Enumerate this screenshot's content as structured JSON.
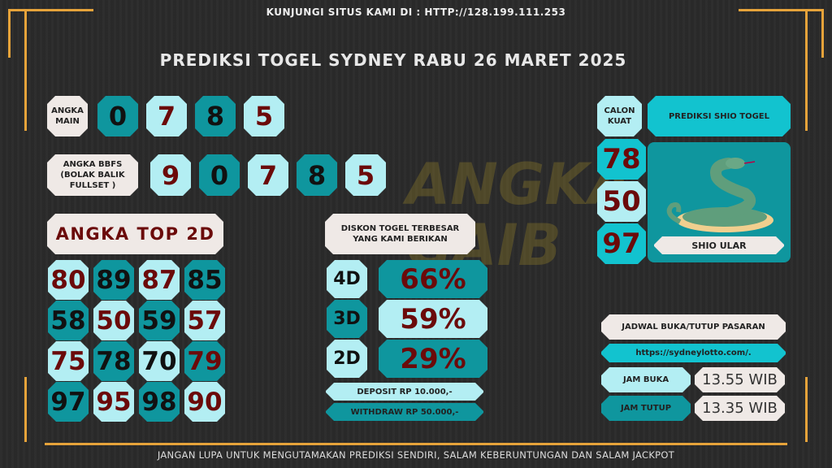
{
  "header": {
    "visit_text": "KUNJUNGI SITUS KAMI DI : HTTP://128.199.111.253",
    "title": "PREDIKSI TOGEL SYDNEY RABU 26 MARET 2025"
  },
  "watermark": "ANGKA GAIB",
  "angka_main": {
    "label": "ANGKA MAIN",
    "digits": [
      "0",
      "7",
      "8",
      "5"
    ]
  },
  "bbfs": {
    "label": "ANGKA BBFS (BOLAK BALIK FULLSET )",
    "digits": [
      "9",
      "0",
      "7",
      "8",
      "5"
    ]
  },
  "top2d": {
    "label": "ANGKA TOP 2D",
    "rows": [
      [
        "80",
        "89",
        "87",
        "85"
      ],
      [
        "58",
        "50",
        "59",
        "57"
      ],
      [
        "75",
        "78",
        "70",
        "79"
      ],
      [
        "97",
        "95",
        "98",
        "90"
      ]
    ]
  },
  "diskon": {
    "label": "DISKON TOGEL TERBESAR YANG KAMI BERIKAN",
    "rows": [
      {
        "type": "4D",
        "value": "66%"
      },
      {
        "type": "3D",
        "value": "59%"
      },
      {
        "type": "2D",
        "value": "29%"
      }
    ],
    "deposit": "DEPOSIT RP 10.000,-",
    "withdraw": "WITHDRAW RP 50.000,-"
  },
  "calon_kuat": {
    "label": "CALON KUAT",
    "numbers": [
      "78",
      "50",
      "97"
    ]
  },
  "shio": {
    "header": "PREDIKSI SHIO TOGEL",
    "name": "SHIO ULAR",
    "icon": "snake-icon"
  },
  "jadwal": {
    "label": "JADWAL BUKA/TUTUP PASARAN",
    "url": "https://sydneylotto.com/.",
    "buka_label": "JAM BUKA",
    "buka_time": "13.55 WIB",
    "tutup_label": "JAM TUTUP",
    "tutup_time": "13.35 WIB"
  },
  "footer": "JANGAN LUPA UNTUK MENGUTAMAKAN PREDIKSI SENDIRI, SALAM KEBERUNTUNGAN DAN SALAM JACKPOT",
  "colors": {
    "light": "#b3eef3",
    "dark": "#0f969e",
    "cyan": "#12c3cf",
    "red_text": "#6b0a0a",
    "frame": "#e6a33a"
  }
}
